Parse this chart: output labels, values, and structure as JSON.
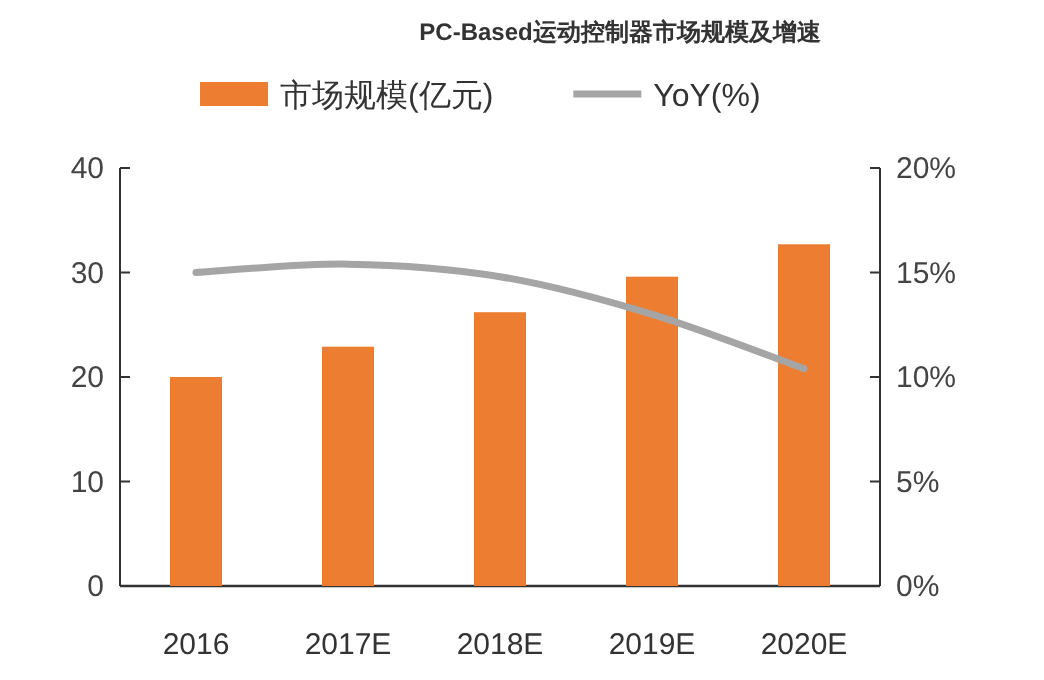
{
  "chart_data": {
    "type": "bar",
    "title": "PC-Based运动控制器市场规模及增速",
    "categories": [
      "2016",
      "2017E",
      "2018E",
      "2019E",
      "2020E"
    ],
    "series": [
      {
        "name": "市场规模(亿元)",
        "color": "#ed7d31",
        "values": [
          20,
          22.9,
          26.2,
          29.6,
          32.7
        ]
      },
      {
        "name": "YoY(%)",
        "type": "line",
        "axis": "y2",
        "color": "#a5a5a5",
        "values": [
          15.0,
          15.4,
          14.8,
          13.0,
          10.4
        ]
      }
    ],
    "ylim": [
      0,
      40
    ],
    "yticks": [
      0,
      10,
      20,
      30,
      40
    ],
    "y2lim": [
      0,
      20
    ],
    "y2ticks": [
      {
        "value": 0,
        "label": "0%"
      },
      {
        "value": 5,
        "label": "5%"
      },
      {
        "value": 10,
        "label": "10%"
      },
      {
        "value": 15,
        "label": "15%"
      },
      {
        "value": 20,
        "label": "20%"
      }
    ],
    "legend": "top"
  }
}
